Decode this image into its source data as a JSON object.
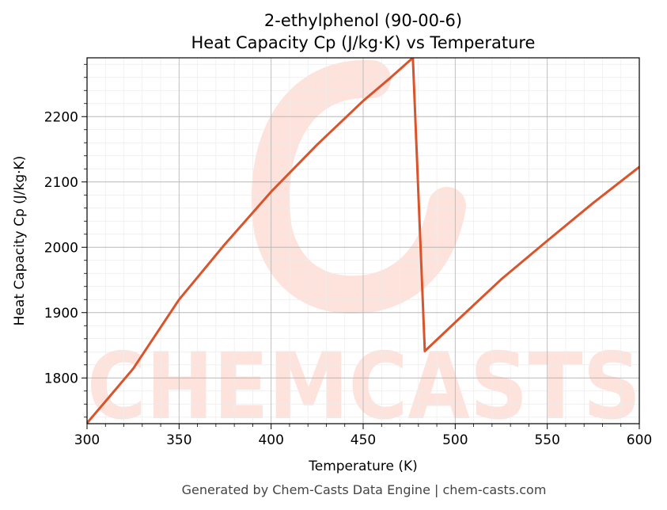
{
  "chart_data": {
    "type": "line",
    "title_line1": "2-ethylphenol (90-00-6)",
    "title_line2": "Heat Capacity Cp (J/kg·K) vs Temperature",
    "xlabel": "Temperature (K)",
    "ylabel": "Heat Capacity Cp (J/kg·K)",
    "xlim": [
      300,
      600
    ],
    "ylim": [
      1730,
      2290
    ],
    "xticks": [
      300,
      350,
      400,
      450,
      500,
      550,
      600
    ],
    "yticks": [
      1800,
      1900,
      2000,
      2100,
      2200
    ],
    "grid": true,
    "line_color": "#d9542b",
    "series": [
      {
        "x": [
          300,
          310,
          325,
          350,
          375,
          400,
          425,
          450,
          465,
          477,
          483.5,
          500,
          525,
          550,
          575,
          600
        ],
        "values": [
          1731,
          1764,
          1814,
          1920,
          2005,
          2085,
          2157,
          2224,
          2260,
          2290,
          1841,
          1885,
          1951,
          2010,
          2068,
          2123
        ]
      }
    ]
  },
  "watermark": {
    "text": "CHEMCASTS",
    "color": "#fde3dc"
  },
  "footer": "Generated by Chem-Casts Data Engine | chem-casts.com"
}
